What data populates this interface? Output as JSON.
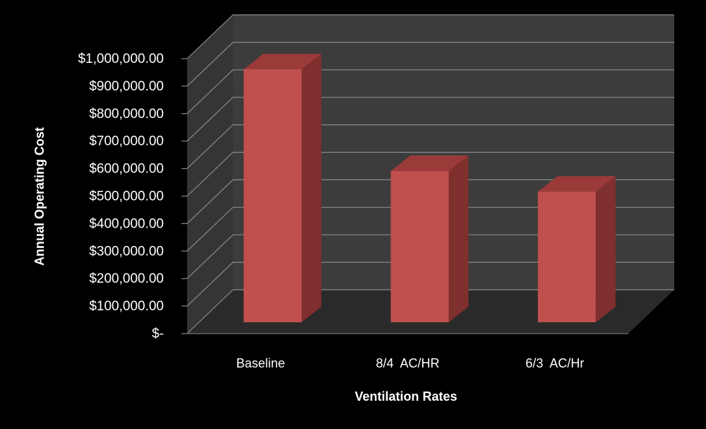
{
  "chart_data": {
    "type": "bar",
    "style": "3d-column",
    "title": "",
    "xlabel": "Ventilation Rates",
    "ylabel": "Annual Operating Cost",
    "categories": [
      "Baseline",
      "8/4  AC/HR",
      "6/3  AC/Hr"
    ],
    "values": [
      920000,
      550000,
      475000
    ],
    "ylim": [
      0,
      1000000
    ],
    "y_ticks": [
      0,
      100000,
      200000,
      300000,
      400000,
      500000,
      600000,
      700000,
      800000,
      900000,
      1000000
    ],
    "y_tick_labels": [
      "$-",
      "$100,000.00",
      "$200,000.00",
      "$300,000.00",
      "$400,000.00",
      "$500,000.00",
      "$600,000.00",
      "$700,000.00",
      "$800,000.00",
      "$900,000.00",
      "$1,000,000.00"
    ],
    "grid": true,
    "legend": "none",
    "colors": {
      "background": "#000000",
      "wall": "#3c3c3c",
      "floor": "#2a2a2a",
      "gridline": "#8a8a8a",
      "bar_front": "#c0504d",
      "bar_side": "#7f2f2d",
      "bar_top": "#9a3b39",
      "text": "#ffffff"
    }
  }
}
